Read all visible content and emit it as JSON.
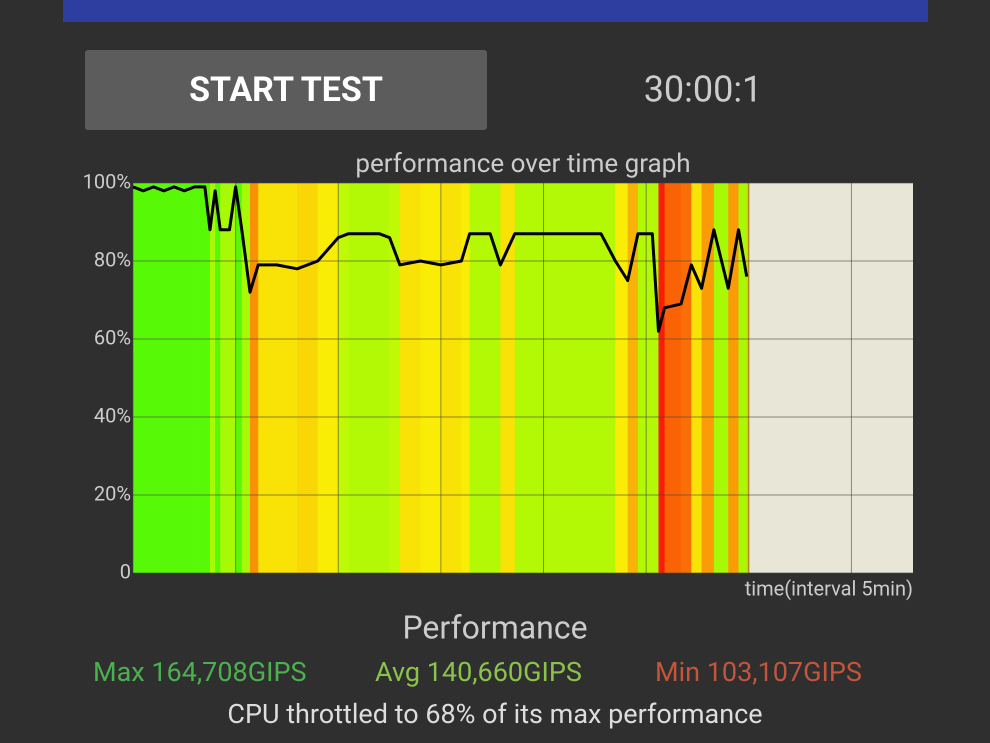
{
  "button": {
    "label": "START TEST"
  },
  "timer": "30:00:1",
  "chart_data": {
    "type": "line",
    "title": "performance over time graph",
    "x_label": "time(interval 5min)",
    "x": [
      0,
      0.5,
      1,
      1.5,
      2,
      2.5,
      3,
      3.5,
      3.75,
      4,
      4.25,
      4.7,
      5,
      5.3,
      5.7,
      6.1,
      7,
      8,
      9,
      10,
      10.5,
      12,
      12.5,
      13,
      14,
      15,
      16,
      16.4,
      17.4,
      17.9,
      18.6,
      20,
      21,
      22.8,
      23.5,
      24.1,
      24.6,
      25.3,
      25.6,
      25.9,
      26.7,
      27.2,
      27.7,
      28.3,
      29,
      29.5,
      29.9
    ],
    "values": [
      99,
      98,
      99,
      98,
      99,
      98,
      99,
      99,
      88,
      98,
      88,
      88,
      99,
      88,
      72,
      79,
      79,
      78,
      80,
      86,
      87,
      87,
      86,
      79,
      80,
      79,
      80,
      87,
      87,
      79,
      87,
      87,
      87,
      87,
      80,
      75,
      87,
      87,
      62,
      68,
      69,
      79,
      73,
      88,
      73,
      88,
      76
    ],
    "color": "#000000",
    "xlim": [
      0,
      38
    ],
    "xticks": [
      0,
      5,
      10,
      15,
      20,
      25,
      30,
      35
    ],
    "ylim": [
      0,
      100
    ],
    "yticks": [
      0,
      {
        "value": 20,
        "label": "20%"
      },
      {
        "value": 40,
        "label": "40%"
      },
      {
        "value": 60,
        "label": "60%"
      },
      {
        "value": 80,
        "label": "80%"
      },
      {
        "value": 100,
        "label": "100%"
      }
    ],
    "grid": true
  },
  "summary": {
    "title": "Performance",
    "max": "Max 164,708GIPS",
    "avg": "Avg 140,660GIPS",
    "min": "Min 103,107GIPS",
    "note": "CPU throttled to 68% of its max performance"
  }
}
